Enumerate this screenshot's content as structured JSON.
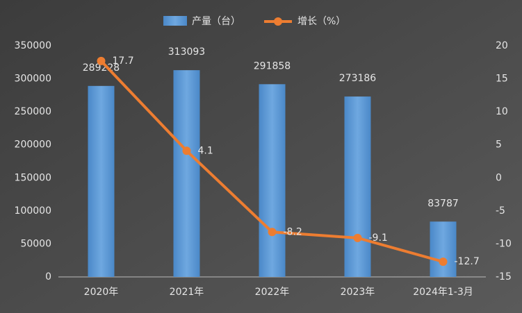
{
  "chart_data": {
    "type": "bar-line",
    "categories": [
      "2020年",
      "2021年",
      "2022年",
      "2023年",
      "2024年1-3月"
    ],
    "series": [
      {
        "name": "产量（台）",
        "type": "bar",
        "color": "#5b9bd5",
        "values": [
          289228,
          313093,
          291858,
          273186,
          83787
        ]
      },
      {
        "name": "增长（%）",
        "type": "line",
        "axis": "y2",
        "color": "#ed7d31",
        "values": [
          17.7,
          4.1,
          -8.2,
          -9.1,
          -12.7
        ]
      }
    ],
    "ylim": [
      0,
      350000
    ],
    "yticks": [
      0,
      50000,
      100000,
      150000,
      200000,
      250000,
      300000,
      350000
    ],
    "y2lim": [
      -15,
      20
    ],
    "y2ticks": [
      -15,
      -10,
      -5,
      0,
      5,
      10,
      15,
      20
    ],
    "legend": "top"
  }
}
